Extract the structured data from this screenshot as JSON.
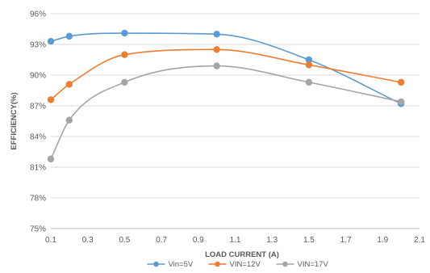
{
  "chart_data": {
    "type": "line",
    "smooth": true,
    "xlabel": "LOAD CURRENT (A)",
    "ylabel": "EFFICIENCY(%)",
    "xlim": [
      0.1,
      2.1
    ],
    "xticks": [
      0.1,
      0.3,
      0.5,
      0.7,
      0.9,
      1.1,
      1.3,
      1.5,
      1.7,
      1.9,
      2.1
    ],
    "xtick_labels": [
      "0.1",
      "0.3",
      "0.5",
      "0.7",
      "0.9",
      "1.1",
      "1.3",
      "1.5",
      "1.7",
      "1.9",
      "2.1"
    ],
    "ylim": [
      75,
      96
    ],
    "yticks": [
      75,
      78,
      81,
      84,
      87,
      90,
      93,
      96
    ],
    "ytick_labels": [
      "75%",
      "78%",
      "81%",
      "84%",
      "87%",
      "90%",
      "93%",
      "96%"
    ],
    "grid": true,
    "legend_position": "bottom",
    "series": [
      {
        "name": "Vin=5V",
        "color": "#5B9BD5",
        "x": [
          0.1,
          0.2,
          0.5,
          1.0,
          1.5,
          2.0
        ],
        "y": [
          93.3,
          93.8,
          94.1,
          94.0,
          91.5,
          87.2
        ]
      },
      {
        "name": "VIN=12V",
        "color": "#ED7D31",
        "x": [
          0.1,
          0.2,
          0.5,
          1.0,
          1.5,
          2.0
        ],
        "y": [
          87.6,
          89.1,
          92.0,
          92.5,
          91.0,
          89.3
        ]
      },
      {
        "name": "VIN=17V",
        "color": "#A5A5A5",
        "x": [
          0.1,
          0.2,
          0.5,
          1.0,
          1.5,
          2.0
        ],
        "y": [
          81.8,
          85.6,
          89.3,
          90.9,
          89.3,
          87.4
        ]
      }
    ]
  }
}
